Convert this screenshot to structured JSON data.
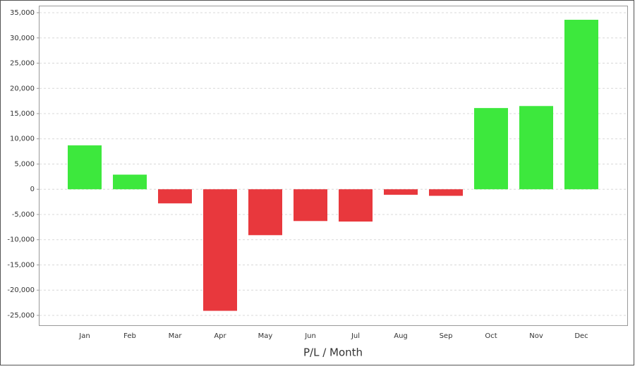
{
  "chart_data": {
    "type": "bar",
    "x_label": "P/L / Month",
    "categories": [
      "Jan",
      "Feb",
      "Mar",
      "Apr",
      "May",
      "Jun",
      "Jul",
      "Aug",
      "Sep",
      "Oct",
      "Nov",
      "Dec"
    ],
    "values": [
      8700,
      2900,
      -2800,
      -24100,
      -9100,
      -6300,
      -6400,
      -1100,
      -1300,
      16100,
      16500,
      33600
    ],
    "positive_color": "#3de83d",
    "negative_color": "#e8383d",
    "ylim": [
      -27100,
      36400
    ],
    "yticks": [
      {
        "value": 35000,
        "label": "35,000"
      },
      {
        "value": 30000,
        "label": "30,000"
      },
      {
        "value": 25000,
        "label": "25,000"
      },
      {
        "value": 20000,
        "label": "20,000"
      },
      {
        "value": 15000,
        "label": "15,000"
      },
      {
        "value": 10000,
        "label": "10,000"
      },
      {
        "value": 5000,
        "label": "5,000"
      },
      0,
      {
        "value": -5000,
        "label": "-5,000"
      },
      {
        "value": -10000,
        "label": "-10,000"
      },
      {
        "value": -15000,
        "label": "-15,000"
      },
      {
        "value": -20000,
        "label": "-20,000"
      },
      {
        "value": -25000,
        "label": "-25,000"
      }
    ],
    "grid": true
  }
}
